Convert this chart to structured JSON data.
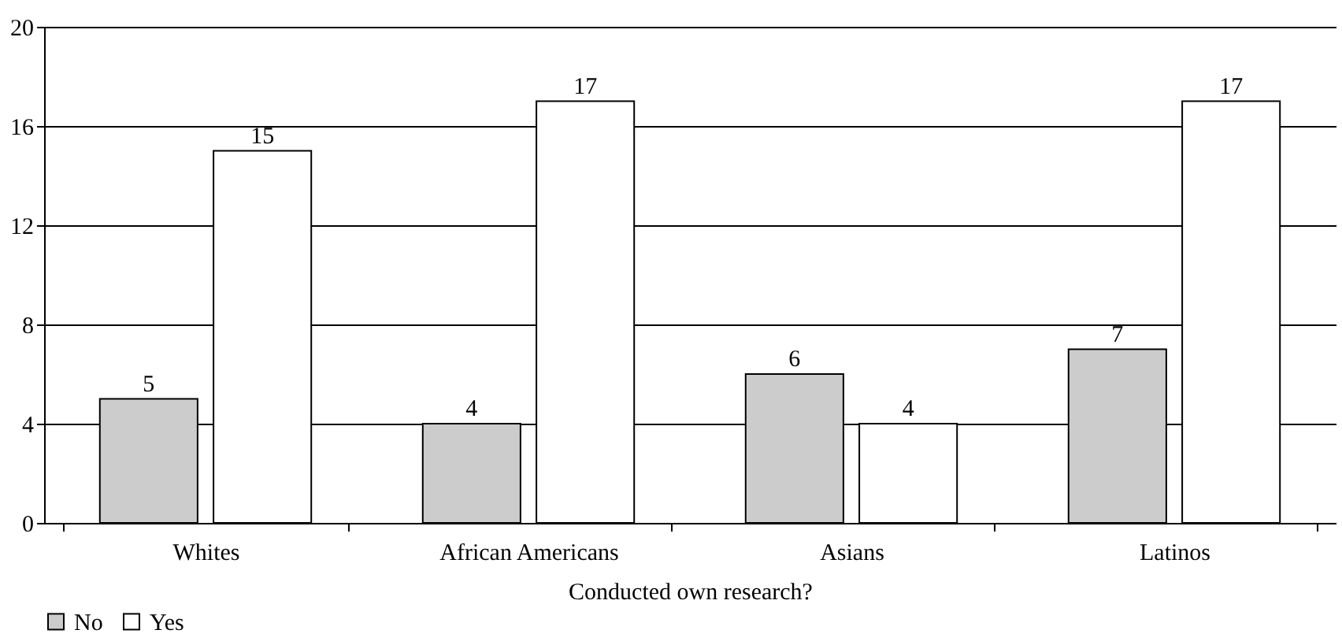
{
  "chart_data": {
    "type": "bar",
    "xlabel": "Conducted own research?",
    "categories": [
      "Whites",
      "African Americans",
      "Asians",
      "Latinos"
    ],
    "series": [
      {
        "name": "No",
        "color": "#cccccc",
        "values": [
          5,
          4,
          6,
          7
        ]
      },
      {
        "name": "Yes",
        "color": "#ffffff",
        "values": [
          15,
          17,
          4,
          17
        ]
      }
    ],
    "ylim": [
      0,
      20
    ],
    "yticks": [
      0,
      4,
      8,
      12,
      16,
      20
    ],
    "grid": "y",
    "legend": "bottom",
    "data_labels": true
  }
}
